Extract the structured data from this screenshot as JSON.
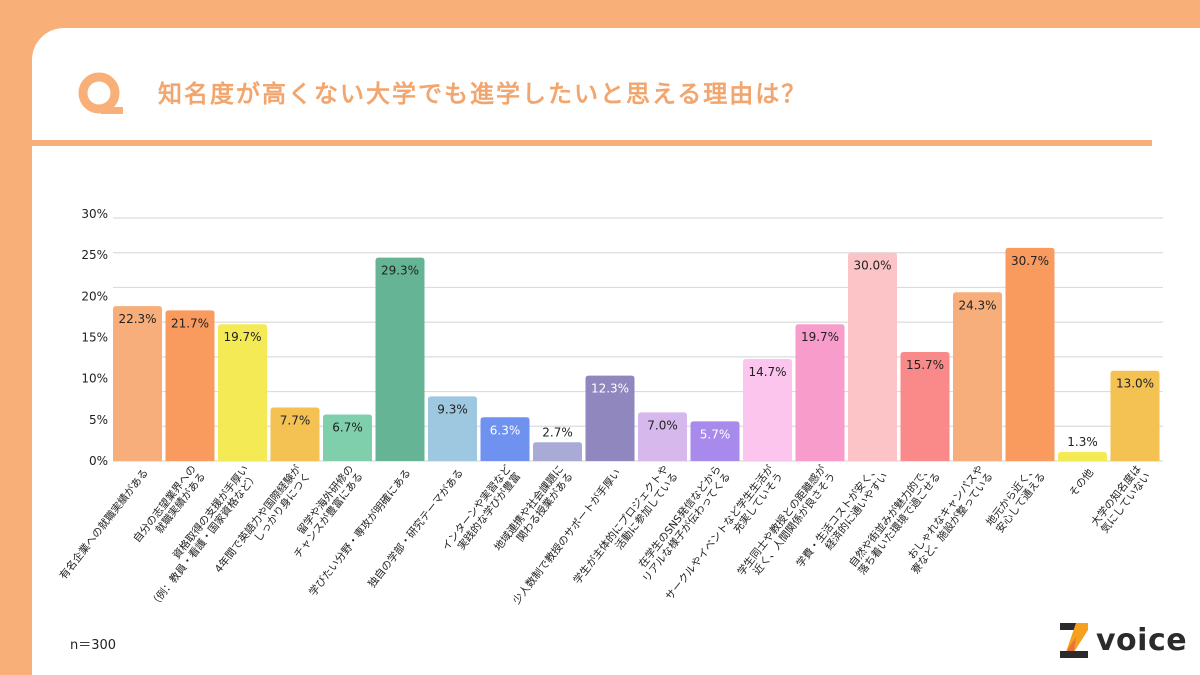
{
  "header": {
    "q_icon": "q-letter-icon",
    "title": "知名度が高くない大学でも進学したいと思える理由は？"
  },
  "footer": {
    "sample_size": "n＝300",
    "logo_text": "voice",
    "logo_icon": "z-logo-icon"
  },
  "colors": {
    "frame": "#F8AF78",
    "title": "#F2A66E"
  },
  "chart_data": {
    "type": "bar",
    "title": "知名度が高くない大学でも進学したいと思える理由は？",
    "xlabel": "",
    "ylabel": "",
    "ylim": [
      0,
      35
    ],
    "y_tick_labels": [
      "0%",
      "5%",
      "10%",
      "15%",
      "20%",
      "25%",
      "30%"
    ],
    "gridlines": [
      0,
      5,
      10,
      15,
      20,
      25,
      30,
      35
    ],
    "grid": true,
    "legend": "none",
    "categories": [
      [
        "有名企業への就職実績がある"
      ],
      [
        "自分の志望業界への",
        "就職実績がある"
      ],
      [
        "資格取得の支援が手厚い",
        "（例：教員・看護・国家資格など）"
      ],
      [
        "4年間で英語力や国際経験が",
        "しっかり身につく"
      ],
      [
        "留学や海外研修の",
        "チャンスが豊富にある"
      ],
      [
        "学びたい分野・専攻が明確にある"
      ],
      [
        "独自の学部・研究テーマがある"
      ],
      [
        "インターンや実習など",
        "実践的な学びが豊富"
      ],
      [
        "地域連携や社会課題に",
        "関わる授業がある"
      ],
      [
        "少人数制で教授のサポートが手厚い"
      ],
      [
        "学生が主体的にプロジェクトや",
        "活動に参加している"
      ],
      [
        "在学生のSNS発信などから",
        "リアルな様子が伝わってくる"
      ],
      [
        "サークルやイベントなど学生生活が",
        "充実していそう"
      ],
      [
        "学生同士や教授との距離感が",
        "近く、人間関係が良さそう"
      ],
      [
        "学費・生活コストが安く、",
        "経済的に通いやすい"
      ],
      [
        "自然や街並みが魅力的で、",
        "落ち着いた環境で過ごせる"
      ],
      [
        "おしゃれなキャンパスや",
        "寮など、施設が整っている"
      ],
      [
        "地元から近く、",
        "安心して通える"
      ],
      [
        "その他"
      ],
      [
        "大学の知名度は",
        "気にしていない"
      ]
    ],
    "values": [
      22.3,
      21.7,
      19.7,
      7.7,
      6.7,
      29.3,
      9.3,
      6.3,
      2.7,
      12.3,
      7.0,
      5.7,
      14.7,
      19.7,
      30.0,
      15.7,
      24.3,
      30.7,
      1.3,
      13.0
    ],
    "value_labels": [
      "22.3%",
      "21.7%",
      "19.7%",
      "7.7%",
      "6.7%",
      "29.3%",
      "9.3%",
      "6.3%",
      "2.7%",
      "12.3%",
      "7.0%",
      "5.7%",
      "14.7%",
      "19.7%",
      "30.0%",
      "15.7%",
      "24.3%",
      "30.7%",
      "1.3%",
      "13.0%"
    ],
    "bar_colors": [
      "#F7AE7A",
      "#F99A5E",
      "#F3EA55",
      "#F4C252",
      "#7FCEAC",
      "#66B496",
      "#9DC8E0",
      "#6F91F0",
      "#A9ABD6",
      "#8F87BD",
      "#D6B8EC",
      "#A889EC",
      "#FCC5EE",
      "#F79CCB",
      "#FCC4C6",
      "#FA8A8A",
      "#F7AE7A",
      "#F99A5E",
      "#F3EA55",
      "#F4C252"
    ],
    "label_light": [
      false,
      false,
      false,
      false,
      false,
      false,
      false,
      true,
      false,
      true,
      false,
      true,
      false,
      false,
      false,
      false,
      false,
      false,
      false,
      false
    ]
  }
}
